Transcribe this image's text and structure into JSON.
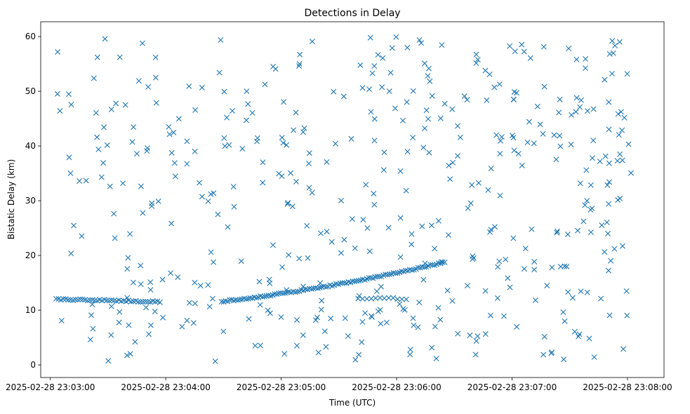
{
  "chart_data": {
    "type": "scatter",
    "title": "Detections in Delay",
    "xlabel": "Time (UTC)",
    "ylabel": "Bistatic Delay (km)",
    "x_axis_type": "time",
    "x_ticks": [
      "2025-02-28 23:03:00",
      "2025-02-28 23:04:00",
      "2025-02-28 23:05:00",
      "2025-02-28 23:06:00",
      "2025-02-28 23:07:00",
      "2025-02-28 23:08:00"
    ],
    "y_ticks": [
      0,
      10,
      20,
      30,
      40,
      50,
      60
    ],
    "xlim": [
      "2025-02-28 23:02:55",
      "2025-02-28 23:08:19"
    ],
    "ylim": [
      -2.3,
      62.7
    ],
    "marker": "x",
    "color": "#1f77b4",
    "grid": false,
    "legend": "none",
    "tracks": [
      {
        "start": "2025-02-28 23:03:03",
        "end": "2025-02-28 23:03:57",
        "delay_start": 12.0,
        "delay_end": 11.5,
        "points": 44
      },
      {
        "start": "2025-02-28 23:04:29",
        "end": "2025-02-28 23:06:25",
        "delay_start": 11.6,
        "delay_end": 18.8,
        "points": 110
      },
      {
        "start": "2025-02-28 23:05:40",
        "end": "2025-02-28 23:06:05",
        "delay_start": 12.2,
        "delay_end": 12.1,
        "points": 12
      }
    ],
    "clutter": {
      "count": 470,
      "time_range": [
        "2025-02-28 23:03:03",
        "2025-02-28 23:08:02"
      ],
      "delay_range": [
        0.5,
        60
      ]
    }
  }
}
